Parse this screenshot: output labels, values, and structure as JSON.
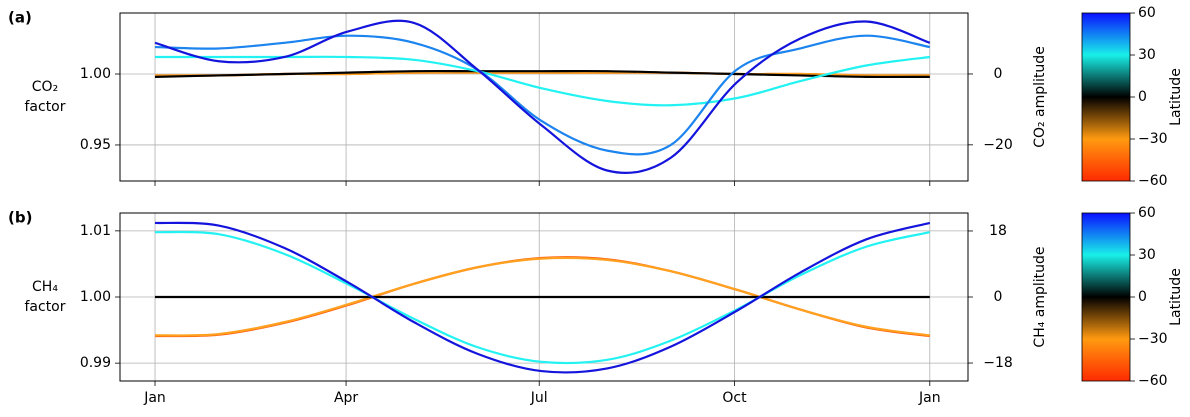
{
  "chart_data": [
    {
      "type": "line",
      "panel_label": "(a)",
      "ylabel": [
        "CO₂",
        "factor"
      ],
      "y2label": "CO₂ amplitude",
      "x": [
        0,
        30,
        61,
        91,
        122,
        152,
        182,
        213,
        243,
        274,
        304,
        335,
        365
      ],
      "xlim": [
        -16.5,
        383
      ],
      "xticks": [
        0,
        90,
        181,
        273,
        365
      ],
      "ylim": [
        0.9246,
        1.043
      ],
      "yticks": [
        {
          "value": 1,
          "label": "1.00"
        },
        0.95
      ],
      "y2lim": [
        -30.2,
        17.2
      ],
      "y2ticks": [
        0,
        {
          "value": -20,
          "label": "−20"
        }
      ],
      "grid": true,
      "series": [
        {
          "color": "#ff5a10",
          "values": [
            0.999,
            0.999,
            1.0,
            1.0,
            1.001,
            1.001,
            1.001,
            1.001,
            1.001,
            1.0,
            1.0,
            0.999,
            0.999
          ]
        },
        {
          "color": "#ffa01e",
          "values": [
            0.999,
            0.999,
            1.0,
            1.0,
            1.001,
            1.001,
            1.001,
            1.001,
            1.001,
            1.0,
            1.0,
            0.999,
            0.999
          ]
        },
        {
          "color": "#000000",
          "values": [
            0.998,
            0.999,
            1.0,
            1.001,
            1.002,
            1.002,
            1.002,
            1.002,
            1.001,
            1.0,
            0.999,
            0.998,
            0.998
          ]
        },
        {
          "color": "#22f2f2",
          "values": [
            1.012,
            1.012,
            1.012,
            1.012,
            1.01,
            1.002,
            0.99,
            0.981,
            0.978,
            0.983,
            0.995,
            1.006,
            1.012
          ]
        },
        {
          "color": "#1c84ee",
          "values": [
            1.019,
            1.018,
            1.022,
            1.027,
            1.022,
            1.003,
            0.967,
            0.946,
            0.95,
            1.003,
            1.018,
            1.027,
            1.019
          ]
        },
        {
          "color": "#1414dc",
          "values": [
            1.022,
            1.009,
            1.012,
            1.03,
            1.036,
            1.003,
            0.964,
            0.932,
            0.941,
            0.994,
            1.025,
            1.037,
            1.022
          ]
        }
      ],
      "colorbar": {
        "label": "Latitude",
        "lim": [
          -60,
          60
        ],
        "colors": [
          "#ff2a00",
          "#ff9a10",
          "#000000",
          "#18f0e8",
          "#0a10ff"
        ],
        "ticks": [
          60,
          30,
          0,
          {
            "value": -30,
            "label": "−30"
          },
          {
            "value": -60,
            "label": "−60"
          }
        ]
      }
    },
    {
      "type": "line",
      "panel_label": "(b)",
      "ylabel": [
        "CH₄",
        "factor"
      ],
      "y2label": "CH₄ amplitude",
      "x": [
        0,
        30,
        61,
        91,
        122,
        152,
        182,
        213,
        243,
        274,
        304,
        335,
        365
      ],
      "xlim": [
        -16.5,
        383
      ],
      "xticks": [
        {
          "value": 0,
          "label": "Jan"
        },
        {
          "value": 90,
          "label": "Apr"
        },
        {
          "value": 181,
          "label": "Jul"
        },
        {
          "value": 273,
          "label": "Oct"
        },
        {
          "value": 365,
          "label": "Jan"
        }
      ],
      "ylim": [
        0.9873,
        1.0127
      ],
      "yticks": [
        1.01,
        {
          "value": 1,
          "label": "1.00"
        },
        0.99
      ],
      "y2lim": [
        -22.9,
        22.9
      ],
      "y2ticks": [
        18,
        0,
        {
          "value": -18,
          "label": "−18"
        }
      ],
      "grid": true,
      "series": [
        {
          "color": "#ff5a10",
          "values": [
            0.9941,
            0.9943,
            0.9961,
            0.9988,
            1.002,
            1.0045,
            1.0059,
            1.0057,
            1.0039,
            1.0011,
            0.9981,
            0.9954,
            0.9941
          ]
        },
        {
          "color": "#ffa01e",
          "values": [
            0.9942,
            0.9944,
            0.9962,
            0.9989,
            1.002,
            1.0045,
            1.0058,
            1.0056,
            1.0039,
            1.0011,
            0.9981,
            0.9955,
            0.9942
          ]
        },
        {
          "color": "#000000",
          "values": [
            1,
            1,
            1,
            1,
            1,
            1,
            1,
            1,
            1,
            1,
            1,
            1,
            1
          ]
        },
        {
          "color": "#22f2f2",
          "values": [
            1.0098,
            1.0095,
            1.0065,
            1.0019,
            0.9967,
            0.9924,
            0.9902,
            0.9905,
            0.9934,
            0.9981,
            1.0033,
            1.0076,
            1.0098
          ]
        },
        {
          "color": "#1414dc",
          "values": [
            1.0112,
            1.0108,
            1.0074,
            1.0022,
            0.9962,
            0.9914,
            0.9888,
            0.9892,
            0.9925,
            0.9979,
            1.0037,
            1.0087,
            1.0112
          ]
        }
      ],
      "colorbar": {
        "label": "Latitude",
        "lim": [
          -60,
          60
        ],
        "colors": [
          "#ff2a00",
          "#ff9a10",
          "#000000",
          "#18f0e8",
          "#0a10ff"
        ],
        "ticks": [
          60,
          30,
          0,
          {
            "value": -30,
            "label": "−30"
          },
          {
            "value": -60,
            "label": "−60"
          }
        ]
      }
    }
  ]
}
